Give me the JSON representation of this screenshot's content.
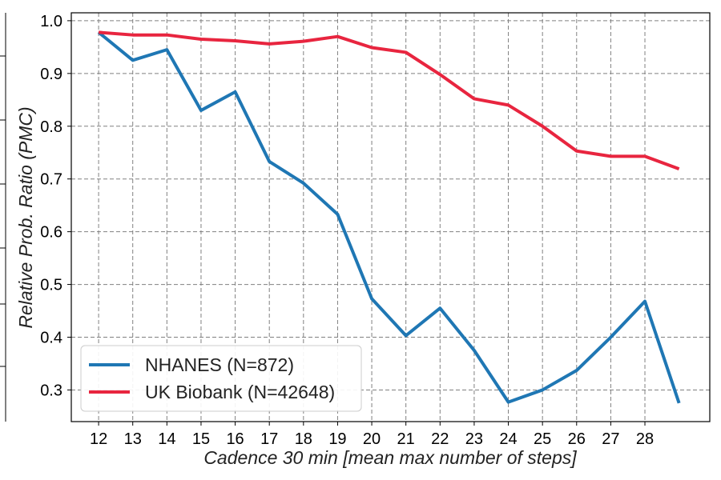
{
  "chart_data": {
    "type": "line",
    "xlabel": "Cadence 30 min [mean max number of steps]",
    "ylabel": "Relative Prob. Ratio (PMC)",
    "x_ticks": [
      "12",
      "13",
      "14",
      "15",
      "16",
      "17",
      "18",
      "19",
      "20",
      "21",
      "22",
      "23",
      "24",
      "25",
      "26",
      "27",
      "28"
    ],
    "y_ticks": [
      "0.3",
      "0.4",
      "0.5",
      "0.6",
      "0.7",
      "0.8",
      "0.9",
      "1.0"
    ],
    "xlim": [
      11.2,
      29.9
    ],
    "ylim": [
      0.24,
      1.015
    ],
    "grid": true,
    "legend_position": "lower-left",
    "x": [
      12,
      13,
      14,
      15,
      16,
      17,
      18,
      19,
      20,
      21,
      22,
      23,
      24,
      25,
      26,
      27,
      28,
      29
    ],
    "series": [
      {
        "name": "NHANES (N=872)",
        "color": "#1f77b4",
        "values": [
          0.978,
          0.925,
          0.945,
          0.83,
          0.865,
          0.733,
          0.692,
          0.633,
          0.473,
          0.403,
          0.455,
          0.375,
          0.277,
          0.3,
          0.337,
          0.4,
          0.468,
          0.275
        ]
      },
      {
        "name": "UK Biobank (N=42648)",
        "color": "#e8253f",
        "values": [
          0.978,
          0.973,
          0.973,
          0.965,
          0.962,
          0.956,
          0.961,
          0.97,
          0.949,
          0.94,
          0.898,
          0.852,
          0.84,
          0.8,
          0.753,
          0.743,
          0.743,
          0.719
        ]
      }
    ]
  }
}
